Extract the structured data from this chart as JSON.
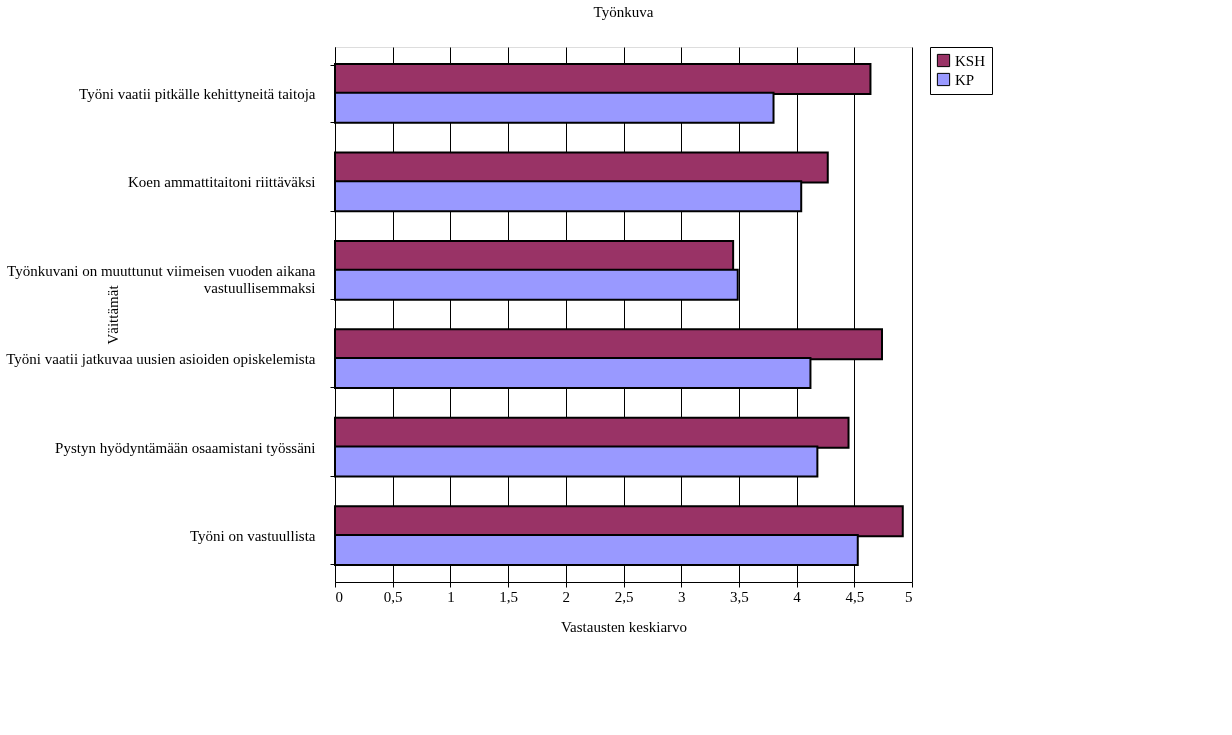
{
  "chart_data": {
    "type": "bar",
    "orientation": "horizontal",
    "title": "Työnkuva",
    "xlabel": "Vastausten keskiarvo",
    "ylabel": "Väittämät",
    "categories": [
      "Työni vaatii pitkälle kehittyneitä taitoja",
      "Koen ammattitaitoni riittäväksi",
      "Työnkuvani on muuttunut viimeisen vuoden aikana\nvastuullisemmaksi",
      "Työni vaatii jatkuvaa uusien asioiden opiskelemista",
      "Pystyn hyödyntämään osaamistani työssäni",
      "Työni on vastuullista"
    ],
    "series": [
      {
        "name": "KSH",
        "color": "#993366",
        "values": [
          4.64,
          4.27,
          3.45,
          4.74,
          4.45,
          4.92
        ]
      },
      {
        "name": "KP",
        "color": "#9999ff",
        "values": [
          3.8,
          4.04,
          3.49,
          4.12,
          4.18,
          4.53
        ]
      }
    ],
    "xlim": [
      0,
      5
    ],
    "xticks": [
      0,
      {
        "value": 0.5,
        "label": "0,5"
      },
      1,
      {
        "value": 1.5,
        "label": "1,5"
      },
      2,
      {
        "value": 2.5,
        "label": "2,5"
      },
      3,
      {
        "value": 3.5,
        "label": "3,5"
      },
      4,
      {
        "value": 4.5,
        "label": "4,5"
      },
      5
    ],
    "grid": "x",
    "legend": "right"
  }
}
